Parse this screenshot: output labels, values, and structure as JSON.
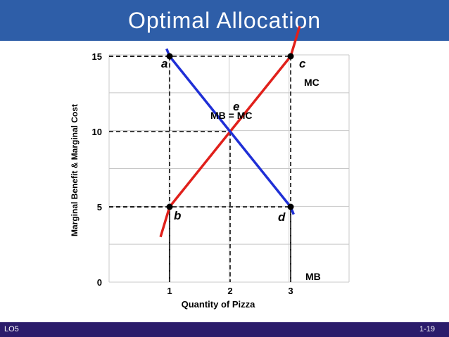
{
  "title": "Optimal Allocation",
  "footer": {
    "left": "LO5",
    "right": "1-19"
  },
  "colors": {
    "title_bar": "#2E5EA8",
    "footer_bar": "#2B1C6B",
    "mc": "#E0201B",
    "mb": "#1F2FD6",
    "grid": "#C8C8C8"
  },
  "chart_data": {
    "type": "line",
    "xlabel": "Quantity of Pizza",
    "ylabel": "Marginal Benefit & Marginal Cost",
    "xlim": [
      0,
      4
    ],
    "ylim": [
      0,
      15
    ],
    "x_ticks": [
      "1",
      "2",
      "3"
    ],
    "y_ticks": [
      "0",
      "5",
      "10",
      "15"
    ],
    "grid": true,
    "series": [
      {
        "name": "MC",
        "points": [
          [
            0.85,
            3
          ],
          [
            1,
            5
          ],
          [
            2,
            10
          ],
          [
            3,
            15
          ],
          [
            3.15,
            17
          ]
        ]
      },
      {
        "name": "MB",
        "points": [
          [
            0.95,
            15.5
          ],
          [
            1,
            15
          ],
          [
            2,
            10
          ],
          [
            3,
            5
          ],
          [
            3.05,
            4.5
          ]
        ]
      }
    ],
    "points": [
      {
        "label": "a",
        "x": 1,
        "y": 15
      },
      {
        "label": "c",
        "x": 3,
        "y": 15
      },
      {
        "label": "b",
        "x": 1,
        "y": 5
      },
      {
        "label": "d",
        "x": 3,
        "y": 5
      },
      {
        "label": "e",
        "x": 2,
        "y": 10
      }
    ],
    "annotation": "MB = MC"
  }
}
